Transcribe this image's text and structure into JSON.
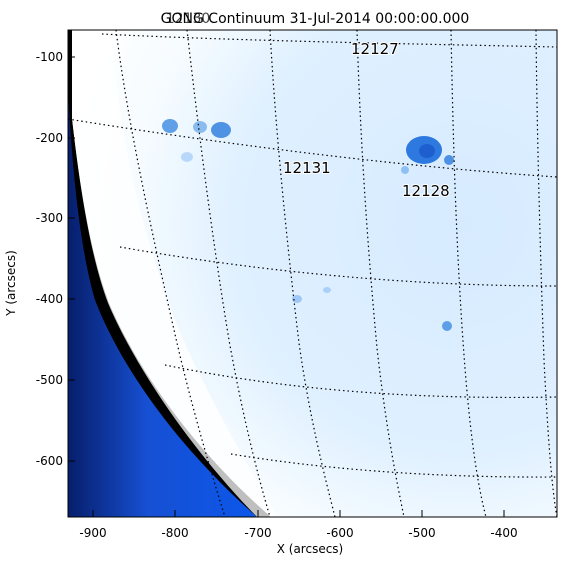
{
  "title": "GONG Continuum 31-Jul-2014 00:00:00.000",
  "title_overlay": "12130",
  "xlabel": "X (arcsecs)",
  "ylabel": "Y (arcsecs)",
  "x_ticks": [
    "-900",
    "-800",
    "-700",
    "-600",
    "-500",
    "-400"
  ],
  "y_ticks": [
    "-100",
    "-200",
    "-300",
    "-400",
    "-500",
    "-600"
  ],
  "active_regions": [
    {
      "id": "ar-12127",
      "label": "12127"
    },
    {
      "id": "ar-12131",
      "label": "12131"
    },
    {
      "id": "ar-12128",
      "label": "12128"
    }
  ],
  "colors": {
    "limb": "#0c4fcf",
    "sky": "#000000",
    "disk_light": "#ffffff",
    "disk_body": "#d8ebff",
    "spot": "#3385e6"
  },
  "graticule": "dotted lat/long grid"
}
